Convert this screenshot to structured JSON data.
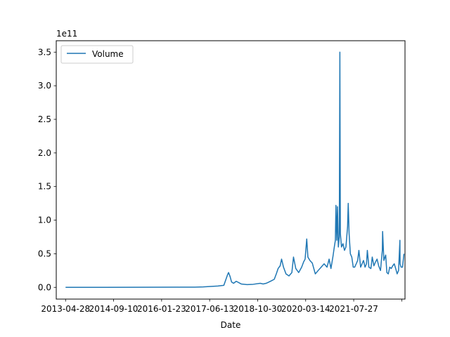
{
  "chart_data": {
    "type": "line",
    "title": "",
    "xlabel": "Date",
    "ylabel": "",
    "y_offset_label": "1e11",
    "ylim": [
      -0.175,
      3.67
    ],
    "y_ticks": [
      0.0,
      0.5,
      1.0,
      1.5,
      2.0,
      2.5,
      3.0,
      3.5
    ],
    "y_tick_labels": [
      "0.0",
      "0.5",
      "1.0",
      "1.5",
      "2.0",
      "2.5",
      "3.0",
      "3.5"
    ],
    "x_ticks": [
      "2013-04-28",
      "2014-09-10",
      "2016-01-23",
      "2017-06-06",
      "2018-10-19",
      "2020-03-02",
      "2021-07-15",
      "2022-11-27"
    ],
    "x_tick_labels": [
      "2013-04-28",
      "2014-09-10",
      "2016-01-23",
      "2017-06-13",
      "2018-10-30",
      "2020-03-14",
      "2021-07-27",
      ""
    ],
    "x_range": [
      "2013-01-21",
      "2022-12-31"
    ],
    "legend_position": "upper-left",
    "grid": false,
    "series": [
      {
        "name": "Volume",
        "color": "#1f77b4",
        "x": [
          "2013-04-28",
          "2014-06-01",
          "2015-08-01",
          "2016-08-01",
          "2017-01-01",
          "2017-04-01",
          "2017-07-01",
          "2017-09-01",
          "2017-11-01",
          "2017-12-10",
          "2017-12-20",
          "2018-01-05",
          "2018-01-20",
          "2018-02-10",
          "2018-03-10",
          "2018-05-01",
          "2018-07-01",
          "2018-09-01",
          "2018-11-15",
          "2018-12-15",
          "2019-01-15",
          "2019-02-15",
          "2019-03-15",
          "2019-04-10",
          "2019-05-01",
          "2019-05-20",
          "2019-06-10",
          "2019-06-25",
          "2019-07-15",
          "2019-08-10",
          "2019-09-10",
          "2019-10-10",
          "2019-10-27",
          "2019-11-20",
          "2019-12-20",
          "2020-01-20",
          "2020-02-10",
          "2020-02-25",
          "2020-03-13",
          "2020-03-25",
          "2020-04-15",
          "2020-05-10",
          "2020-06-10",
          "2020-07-10",
          "2020-08-10",
          "2020-09-10",
          "2020-10-10",
          "2020-11-01",
          "2020-11-20",
          "2020-12-10",
          "2020-12-25",
          "2021-01-05",
          "2021-01-11",
          "2021-01-20",
          "2021-01-27",
          "2021-02-05",
          "2021-02-15",
          "2021-02-21",
          "2021-02-26",
          "2021-03-10",
          "2021-03-25",
          "2021-04-10",
          "2021-04-25",
          "2021-05-12",
          "2021-05-19",
          "2021-05-28",
          "2021-06-10",
          "2021-06-25",
          "2021-07-10",
          "2021-07-25",
          "2021-08-10",
          "2021-08-25",
          "2021-09-07",
          "2021-09-25",
          "2021-10-10",
          "2021-10-25",
          "2021-11-10",
          "2021-11-25",
          "2021-12-04",
          "2021-12-20",
          "2022-01-10",
          "2022-01-24",
          "2022-02-10",
          "2022-02-28",
          "2022-03-15",
          "2022-04-01",
          "2022-04-20",
          "2022-05-09",
          "2022-05-12",
          "2022-05-25",
          "2022-06-13",
          "2022-06-25",
          "2022-07-10",
          "2022-07-25",
          "2022-08-10",
          "2022-08-25",
          "2022-09-10",
          "2022-09-25",
          "2022-10-10",
          "2022-10-25",
          "2022-11-08",
          "2022-11-10",
          "2022-11-20",
          "2022-12-05",
          "2022-12-20"
        ],
        "y": [
          0.0,
          0.0,
          0.001,
          0.002,
          0.003,
          0.006,
          0.015,
          0.02,
          0.03,
          0.19,
          0.22,
          0.16,
          0.08,
          0.06,
          0.09,
          0.05,
          0.04,
          0.045,
          0.06,
          0.05,
          0.06,
          0.08,
          0.1,
          0.12,
          0.2,
          0.28,
          0.32,
          0.42,
          0.3,
          0.2,
          0.17,
          0.22,
          0.45,
          0.28,
          0.22,
          0.3,
          0.38,
          0.42,
          0.72,
          0.45,
          0.4,
          0.36,
          0.2,
          0.25,
          0.3,
          0.35,
          0.3,
          0.42,
          0.28,
          0.45,
          0.6,
          0.7,
          1.22,
          0.7,
          1.2,
          0.6,
          0.75,
          3.5,
          0.8,
          0.6,
          0.65,
          0.55,
          0.6,
          0.9,
          1.25,
          0.8,
          0.5,
          0.45,
          0.3,
          0.3,
          0.35,
          0.4,
          0.55,
          0.3,
          0.35,
          0.4,
          0.3,
          0.35,
          0.55,
          0.3,
          0.28,
          0.45,
          0.32,
          0.38,
          0.42,
          0.32,
          0.25,
          0.55,
          0.83,
          0.4,
          0.48,
          0.22,
          0.2,
          0.3,
          0.28,
          0.32,
          0.35,
          0.28,
          0.2,
          0.25,
          0.7,
          0.35,
          0.3,
          0.3,
          0.5
        ]
      }
    ]
  }
}
